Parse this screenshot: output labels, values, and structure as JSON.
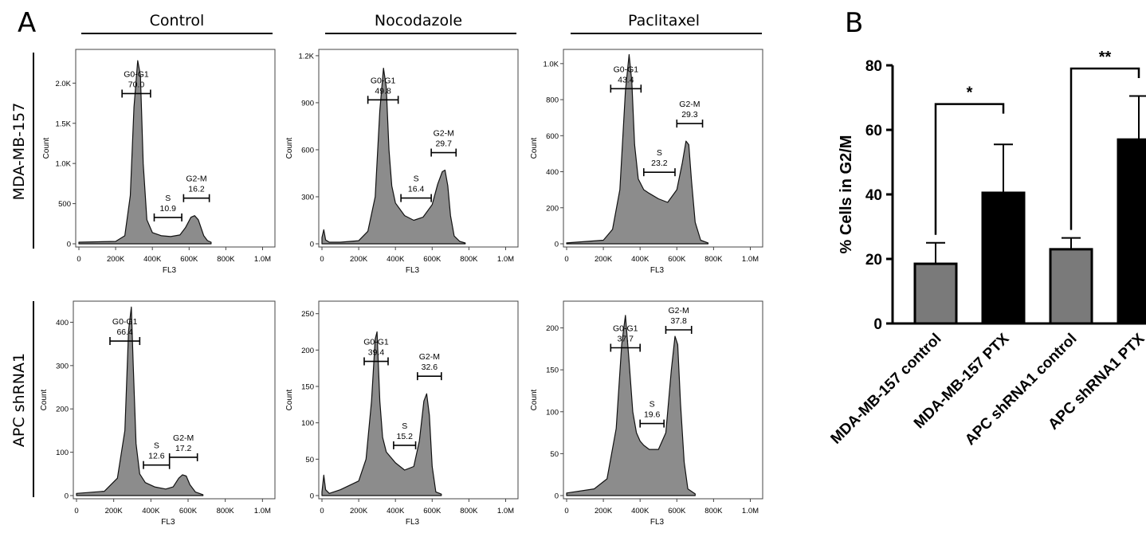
{
  "panel_a_letter": "A",
  "panel_b_letter": "B",
  "conditions": [
    "Control",
    "Nocodazole",
    "Paclitaxel"
  ],
  "cell_lines": [
    "MDA-MB-157",
    "APC shRNA1"
  ],
  "chart_data": [
    {
      "type": "area",
      "panel": "A",
      "row": "MDA-MB-157",
      "column": "Control",
      "xlabel": "FL3",
      "ylabel": "Count",
      "xticks": [
        "0",
        "200K",
        "400K",
        "600K",
        "800K",
        "1.0M"
      ],
      "yticks": [
        "0",
        "500",
        "1.0K",
        "1.5K",
        "2.0K"
      ],
      "xlim": [
        0,
        1050000
      ],
      "ylim": [
        0,
        2400
      ],
      "x": [
        0,
        200000,
        250000,
        280000,
        300000,
        320000,
        335000,
        350000,
        370000,
        400000,
        450000,
        500000,
        550000,
        580000,
        610000,
        630000,
        650000,
        680000,
        700000,
        720000
      ],
      "y": [
        20,
        30,
        100,
        600,
        1700,
        2280,
        2100,
        1000,
        300,
        140,
        100,
        90,
        110,
        200,
        330,
        350,
        300,
        100,
        40,
        20
      ],
      "gates": [
        {
          "name": "G0-G1",
          "value": "70.0",
          "x1": 235000,
          "x2": 390000
        },
        {
          "name": "S",
          "value": "10.9",
          "x1": 410000,
          "x2": 560000
        },
        {
          "name": "G2-M",
          "value": "16.2",
          "x1": 570000,
          "x2": 710000
        }
      ]
    },
    {
      "type": "area",
      "panel": "A",
      "row": "MDA-MB-157",
      "column": "Nocodazole",
      "xlabel": "FL3",
      "ylabel": "Count",
      "xticks": [
        "0",
        "200K",
        "400K",
        "600K",
        "800K",
        "1.0M"
      ],
      "yticks": [
        "0",
        "300",
        "600",
        "900",
        "1.2K"
      ],
      "xlim": [
        0,
        1050000
      ],
      "ylim": [
        0,
        1230
      ],
      "x": [
        0,
        10000,
        20000,
        40000,
        100000,
        200000,
        250000,
        290000,
        315000,
        335000,
        350000,
        365000,
        380000,
        400000,
        450000,
        500000,
        550000,
        600000,
        630000,
        655000,
        670000,
        685000,
        700000,
        720000,
        750000,
        780000
      ],
      "y": [
        40,
        90,
        25,
        10,
        10,
        20,
        80,
        300,
        850,
        1120,
        1000,
        600,
        370,
        260,
        180,
        150,
        170,
        250,
        380,
        460,
        470,
        370,
        180,
        50,
        15,
        5
      ],
      "gates": [
        {
          "name": "G0-G1",
          "value": "49.8",
          "x1": 250000,
          "x2": 415000
        },
        {
          "name": "S",
          "value": "16.4",
          "x1": 430000,
          "x2": 595000
        },
        {
          "name": "G2-M",
          "value": "29.7",
          "x1": 595000,
          "x2": 730000
        }
      ]
    },
    {
      "type": "area",
      "panel": "A",
      "row": "MDA-MB-157",
      "column": "Paclitaxel",
      "xlabel": "FL3",
      "ylabel": "Count",
      "xticks": [
        "0",
        "200K",
        "400K",
        "600K",
        "800K",
        "1.0M"
      ],
      "yticks": [
        "0",
        "200",
        "400",
        "600",
        "800",
        "1.0K"
      ],
      "xlim": [
        0,
        1050000
      ],
      "ylim": [
        0,
        1070
      ],
      "x": [
        0,
        200000,
        250000,
        290000,
        320000,
        340000,
        355000,
        370000,
        390000,
        420000,
        450000,
        500000,
        550000,
        600000,
        630000,
        650000,
        665000,
        680000,
        700000,
        730000,
        770000
      ],
      "y": [
        5,
        20,
        80,
        300,
        850,
        1050,
        900,
        550,
        360,
        300,
        280,
        250,
        230,
        300,
        450,
        570,
        550,
        350,
        120,
        20,
        5
      ],
      "gates": [
        {
          "name": "G0-G1",
          "value": "43.4",
          "x1": 240000,
          "x2": 405000
        },
        {
          "name": "S",
          "value": "23.2",
          "x1": 420000,
          "x2": 590000
        },
        {
          "name": "G2-M",
          "value": "29.3",
          "x1": 600000,
          "x2": 740000
        }
      ]
    },
    {
      "type": "area",
      "panel": "A",
      "row": "APC shRNA1",
      "column": "Control",
      "xlabel": "FL3",
      "ylabel": "Count",
      "xticks": [
        "0",
        "200K",
        "400K",
        "600K",
        "800K",
        "1.0M"
      ],
      "yticks": [
        "0",
        "100",
        "200",
        "300",
        "400"
      ],
      "xlim": [
        0,
        1050000
      ],
      "ylim": [
        0,
        445
      ],
      "x": [
        0,
        150000,
        220000,
        260000,
        280000,
        295000,
        305000,
        320000,
        340000,
        370000,
        420000,
        480000,
        520000,
        550000,
        570000,
        590000,
        610000,
        640000,
        680000
      ],
      "y": [
        5,
        10,
        40,
        150,
        380,
        435,
        300,
        120,
        50,
        30,
        20,
        15,
        20,
        40,
        48,
        45,
        25,
        8,
        2
      ],
      "gates": [
        {
          "name": "G0-G1",
          "value": "66.4",
          "x1": 180000,
          "x2": 340000
        },
        {
          "name": "S",
          "value": "12.6",
          "x1": 360000,
          "x2": 500000
        },
        {
          "name": "G2-M",
          "value": "17.2",
          "x1": 500000,
          "x2": 650000
        }
      ]
    },
    {
      "type": "area",
      "panel": "A",
      "row": "APC shRNA1",
      "column": "Nocodazole",
      "xlabel": "FL3",
      "ylabel": "Count",
      "xticks": [
        "0",
        "200K",
        "400K",
        "600K",
        "800K",
        "1.0M"
      ],
      "yticks": [
        "0",
        "50",
        "100",
        "150",
        "200",
        "250"
      ],
      "xlim": [
        0,
        1050000
      ],
      "ylim": [
        0,
        265
      ],
      "x": [
        0,
        10000,
        20000,
        40000,
        100000,
        200000,
        240000,
        270000,
        290000,
        300000,
        315000,
        330000,
        350000,
        400000,
        450000,
        500000,
        530000,
        555000,
        570000,
        585000,
        600000,
        620000,
        650000
      ],
      "y": [
        5,
        28,
        8,
        3,
        8,
        20,
        50,
        130,
        215,
        225,
        130,
        80,
        60,
        45,
        35,
        40,
        75,
        130,
        140,
        110,
        40,
        5,
        2
      ],
      "gates": [
        {
          "name": "G0-G1",
          "value": "39.4",
          "x1": 230000,
          "x2": 360000
        },
        {
          "name": "S",
          "value": "15.2",
          "x1": 390000,
          "x2": 510000
        },
        {
          "name": "G2-M",
          "value": "32.6",
          "x1": 520000,
          "x2": 650000
        }
      ]
    },
    {
      "type": "area",
      "panel": "A",
      "row": "APC shRNA1",
      "column": "Paclitaxel",
      "xlabel": "FL3",
      "ylabel": "Count",
      "xticks": [
        "0",
        "200K",
        "400K",
        "600K",
        "800K",
        "1.0M"
      ],
      "yticks": [
        "0",
        "50",
        "100",
        "150",
        "200"
      ],
      "xlim": [
        0,
        1050000
      ],
      "ylim": [
        0,
        230
      ],
      "x": [
        0,
        150000,
        220000,
        270000,
        300000,
        320000,
        340000,
        360000,
        380000,
        400000,
        420000,
        450000,
        500000,
        540000,
        570000,
        590000,
        605000,
        620000,
        640000,
        660000,
        700000
      ],
      "y": [
        3,
        8,
        20,
        80,
        180,
        215,
        160,
        100,
        75,
        65,
        60,
        55,
        55,
        75,
        150,
        190,
        180,
        110,
        40,
        8,
        2
      ],
      "gates": [
        {
          "name": "G0-G1",
          "value": "37.7",
          "x1": 240000,
          "x2": 400000
        },
        {
          "name": "S",
          "value": "19.6",
          "x1": 400000,
          "x2": 530000
        },
        {
          "name": "G2-M",
          "value": "37.8",
          "x1": 540000,
          "x2": 680000
        }
      ]
    },
    {
      "type": "bar",
      "panel": "B",
      "categories": [
        "MDA-MB-157 control",
        "MDA-MB-157 PTX",
        "APC shRNA1 control",
        "APC shRNA1 PTX"
      ],
      "values": [
        18.5,
        40.5,
        23,
        57
      ],
      "errors": [
        6.5,
        15,
        3.5,
        13.5
      ],
      "bar_colors": [
        "#7a7a7a",
        "#000000",
        "#7a7a7a",
        "#000000"
      ],
      "ylabel": "% Cells in G2/M",
      "yticks": [
        "0",
        "20",
        "40",
        "60",
        "80"
      ],
      "ylim": [
        0,
        80
      ],
      "significance": [
        {
          "between": [
            0,
            1
          ],
          "label": "*",
          "y": 68
        },
        {
          "between": [
            2,
            3
          ],
          "label": "**",
          "y": 79
        }
      ]
    }
  ]
}
